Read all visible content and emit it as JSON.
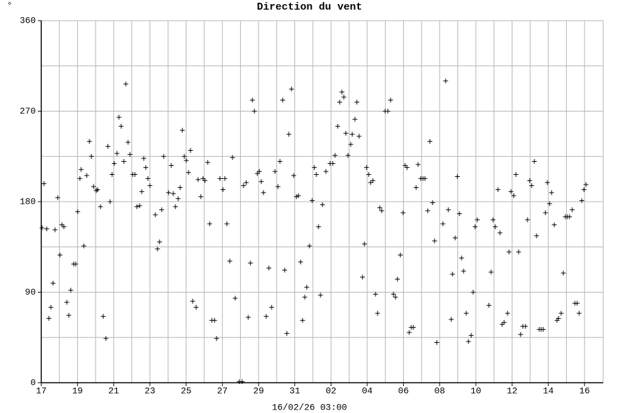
{
  "chart_data": {
    "type": "scatter",
    "title": "Direction du vent",
    "y_label": "°",
    "x_label": "16/02/26 03:00",
    "color": "#000000",
    "grid": true,
    "xlim": [
      0,
      31.03
    ],
    "ylim": [
      0,
      360
    ],
    "xticks": [
      {
        "value": 0,
        "label": "17"
      },
      {
        "value": 2,
        "label": "19"
      },
      {
        "value": 4,
        "label": "21"
      },
      {
        "value": 6,
        "label": "23"
      },
      {
        "value": 8,
        "label": "25"
      },
      {
        "value": 10,
        "label": "27"
      },
      {
        "value": 12,
        "label": "29"
      },
      {
        "value": 14,
        "label": "31"
      },
      {
        "value": 16,
        "label": "02"
      },
      {
        "value": 18,
        "label": "04"
      },
      {
        "value": 20,
        "label": "06"
      },
      {
        "value": 22,
        "label": "08"
      },
      {
        "value": 24,
        "label": "10"
      },
      {
        "value": 26,
        "label": "12"
      },
      {
        "value": 28,
        "label": "14"
      },
      {
        "value": 30,
        "label": "16"
      }
    ],
    "yticks": [
      0,
      90,
      180,
      270,
      360
    ],
    "x": [
      0.04,
      0.15,
      0.3,
      0.42,
      0.53,
      0.65,
      0.76,
      0.91,
      1.03,
      1.14,
      1.25,
      1.41,
      1.52,
      1.63,
      1.79,
      1.9,
      2.01,
      2.13,
      2.2,
      2.35,
      2.51,
      2.66,
      2.77,
      2.89,
      3.04,
      3.11,
      3.27,
      3.42,
      3.57,
      3.68,
      3.8,
      3.91,
      4.03,
      4.18,
      4.29,
      4.41,
      4.56,
      4.67,
      4.79,
      4.9,
      5.05,
      5.17,
      5.28,
      5.43,
      5.55,
      5.66,
      5.77,
      5.89,
      6.0,
      6.3,
      6.42,
      6.53,
      6.65,
      6.76,
      7.03,
      7.18,
      7.29,
      7.41,
      7.56,
      7.67,
      7.79,
      7.9,
      8.01,
      8.13,
      8.24,
      8.36,
      8.55,
      8.66,
      8.81,
      8.93,
      9.04,
      9.19,
      9.3,
      9.42,
      9.57,
      9.68,
      9.87,
      10.03,
      10.14,
      10.25,
      10.41,
      10.56,
      10.71,
      10.94,
      11.09,
      11.17,
      11.32,
      11.43,
      11.55,
      11.66,
      11.77,
      11.93,
      12.04,
      12.15,
      12.27,
      12.42,
      12.57,
      12.72,
      12.91,
      13.07,
      13.18,
      13.33,
      13.44,
      13.56,
      13.67,
      13.82,
      13.94,
      14.09,
      14.2,
      14.32,
      14.43,
      14.55,
      14.66,
      14.81,
      14.96,
      15.08,
      15.19,
      15.31,
      15.42,
      15.53,
      15.72,
      15.95,
      16.1,
      16.22,
      16.37,
      16.48,
      16.6,
      16.71,
      16.82,
      16.94,
      17.09,
      17.17,
      17.32,
      17.43,
      17.55,
      17.74,
      17.85,
      17.96,
      18.08,
      18.19,
      18.31,
      18.46,
      18.57,
      18.69,
      18.8,
      18.99,
      19.14,
      19.29,
      19.45,
      19.56,
      19.67,
      19.83,
      19.98,
      20.09,
      20.2,
      20.32,
      20.43,
      20.55,
      20.7,
      20.81,
      20.96,
      21.08,
      21.19,
      21.34,
      21.46,
      21.61,
      21.72,
      21.84,
      22.18,
      22.33,
      22.48,
      22.64,
      22.71,
      22.86,
      22.98,
      23.09,
      23.21,
      23.32,
      23.47,
      23.59,
      23.74,
      23.85,
      23.96,
      24.08,
      24.72,
      24.84,
      24.95,
      25.07,
      25.22,
      25.33,
      25.45,
      25.56,
      25.75,
      25.83,
      25.94,
      26.09,
      26.21,
      26.36,
      26.47,
      26.59,
      26.74,
      26.85,
      26.97,
      27.08,
      27.23,
      27.35,
      27.5,
      27.61,
      27.72,
      27.84,
      27.95,
      28.07,
      28.18,
      28.33,
      28.48,
      28.56,
      28.71,
      28.83,
      28.94,
      29.05,
      29.17,
      29.32,
      29.47,
      29.59,
      29.7,
      29.85,
      29.97,
      30.08
    ],
    "values": [
      154,
      198,
      153,
      64,
      75,
      99,
      152,
      184,
      127,
      157,
      155,
      80,
      67,
      92,
      118,
      118,
      170,
      203,
      212,
      136,
      206,
      240,
      225,
      195,
      191,
      192,
      175,
      66,
      44,
      235,
      180,
      207,
      218,
      228,
      264,
      255,
      220,
      297,
      239,
      227,
      207,
      207,
      175,
      176,
      190,
      223,
      214,
      203,
      196,
      167,
      133,
      140,
      172,
      225,
      189,
      216,
      188,
      175,
      183,
      194,
      251,
      225,
      221,
      209,
      231,
      81,
      75,
      202,
      185,
      203,
      201,
      219,
      158,
      62,
      62,
      44,
      203,
      192,
      203,
      158,
      121,
      224,
      84,
      1,
      1,
      196,
      199,
      65,
      119,
      281,
      270,
      208,
      210,
      200,
      189,
      66,
      114,
      75,
      210,
      195,
      220,
      281,
      112,
      49,
      247,
      292,
      206,
      185,
      186,
      120,
      62,
      85,
      95,
      136,
      181,
      214,
      207,
      155,
      87,
      177,
      210,
      218,
      218,
      226,
      255,
      279,
      289,
      284,
      248,
      226,
      237,
      247,
      262,
      279,
      245,
      105,
      138,
      214,
      207,
      199,
      201,
      88,
      69,
      174,
      171,
      270,
      270,
      281,
      88,
      85,
      103,
      127,
      169,
      216,
      214,
      50,
      55,
      55,
      194,
      217,
      203,
      203,
      203,
      171,
      240,
      179,
      141,
      40,
      158,
      300,
      172,
      63,
      108,
      144,
      205,
      168,
      124,
      111,
      69,
      41,
      47,
      90,
      155,
      162,
      77,
      110,
      162,
      155,
      192,
      149,
      58,
      60,
      69,
      130,
      190,
      186,
      207,
      130,
      48,
      56,
      56,
      162,
      201,
      196,
      220,
      146,
      53,
      53,
      53,
      169,
      199,
      178,
      189,
      157,
      62,
      64,
      69,
      109,
      165,
      165,
      165,
      172,
      79,
      79,
      69,
      181,
      192,
      197
    ]
  }
}
